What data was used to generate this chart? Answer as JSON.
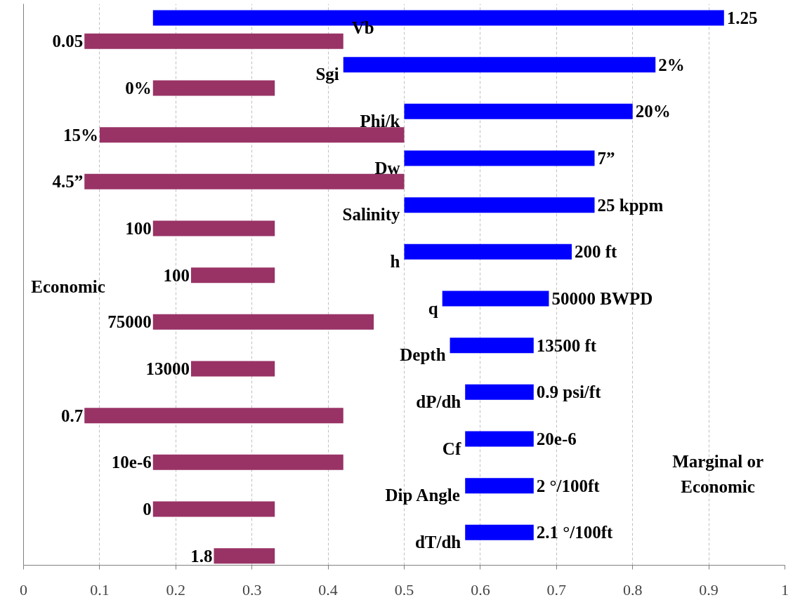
{
  "chart_data": {
    "type": "bar",
    "orientation": "horizontal",
    "categories": [
      "Vb",
      "Sgi",
      "Phi/k",
      "Dw",
      "Salinity",
      "h",
      "q",
      "Depth",
      "dP/dh",
      "Cf",
      "Dip Angle",
      "dT/dh"
    ],
    "series": [
      {
        "color": "#0000ff",
        "base": [
          0.17,
          0.42,
          0.5,
          0.5,
          0.5,
          0.5,
          0.55,
          0.56,
          0.58,
          0.58,
          0.58,
          0.58
        ],
        "values": [
          0.75,
          0.41,
          0.3,
          0.25,
          0.25,
          0.22,
          0.14,
          0.11,
          0.09,
          0.09,
          0.09,
          0.09
        ]
      },
      {
        "color": "#993366",
        "base": [
          0.08,
          0.17,
          0.1,
          0.08,
          0.17,
          0.22,
          0.17,
          0.22,
          0.08,
          0.17,
          0.17,
          0.25
        ],
        "values": [
          0.34,
          0.16,
          0.4,
          0.42,
          0.16,
          0.11,
          0.29,
          0.11,
          0.34,
          0.25,
          0.16,
          0.08
        ]
      }
    ],
    "xlim": [
      0,
      1
    ],
    "xticks": [
      0,
      0.1,
      0.2,
      0.3,
      0.4,
      0.5,
      0.6,
      0.7,
      0.8,
      0.9,
      1
    ],
    "grid": "x",
    "annotations": [
      "Economic",
      "Marginal or\nEconomic",
      "0.05",
      "0%",
      "15%",
      "4.5”",
      "100",
      "100",
      "75000",
      "13000",
      "0.7",
      "10e-6",
      "0",
      "1.8",
      {
        "text": "1.25",
        "x": 0.92,
        "y": "Vb"
      },
      {
        "text": "2%",
        "x": 0.83,
        "y": "Sgi"
      },
      {
        "text": "20%",
        "x": 0.8,
        "y": "Phi/k"
      },
      {
        "text": "7”",
        "x": 0.75,
        "y": "Dw"
      },
      {
        "text": "25 kppm",
        "x": 0.75,
        "y": "Salinity"
      },
      {
        "text": "200 ft",
        "x": 0.72,
        "y": "h"
      },
      {
        "text": "50000 BWPD",
        "x": 0.69,
        "y": "q"
      },
      {
        "text": "13500 ft",
        "x": 0.67,
        "y": "Depth"
      },
      {
        "text": "0.9 psi/ft",
        "x": 0.67,
        "y": "dP/dh"
      },
      {
        "text": "20e-6",
        "x": 0.67,
        "y": "Cf"
      },
      {
        "text": "2 °/100ft",
        "x": 0.67,
        "y": "Dip Angle"
      },
      {
        "text": "2.1 °/100ft",
        "x": 0.67,
        "y": "dT/dh"
      }
    ]
  }
}
